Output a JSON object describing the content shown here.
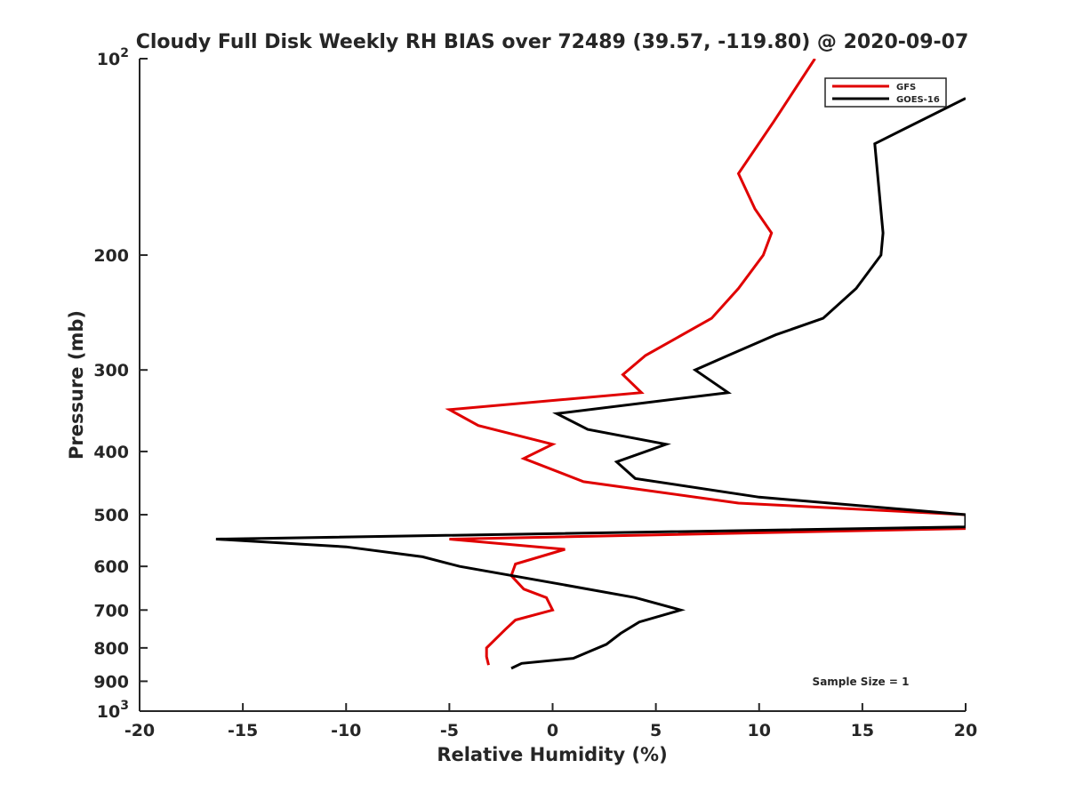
{
  "chart_data": {
    "type": "line",
    "title": "Cloudy Full Disk Weekly RH BIAS over 72489 (39.57, -119.80) @ 2020-09-07",
    "xlabel": "Relative Humidity (%)",
    "ylabel": "Pressure (mb)",
    "xlim": [
      -20,
      20
    ],
    "ylim": [
      100,
      1000
    ],
    "y_scale": "log",
    "y_reversed": true,
    "grid": false,
    "legend_position": "top-right",
    "x_ticks": [
      -20,
      -15,
      -10,
      -5,
      0,
      5,
      10,
      15,
      20
    ],
    "x_tick_labels": [
      "-20",
      "-15",
      "-10",
      "-5",
      "0",
      "5",
      "10",
      "15",
      "20"
    ],
    "y_ticks": [
      100,
      200,
      300,
      400,
      500,
      600,
      700,
      800,
      900,
      1000
    ],
    "y_tick_labels": [
      {
        "base": "10",
        "exp": "2"
      },
      {
        "base": "200",
        "exp": ""
      },
      {
        "base": "300",
        "exp": ""
      },
      {
        "base": "400",
        "exp": ""
      },
      {
        "base": "500",
        "exp": ""
      },
      {
        "base": "600",
        "exp": ""
      },
      {
        "base": "700",
        "exp": ""
      },
      {
        "base": "800",
        "exp": ""
      },
      {
        "base": "900",
        "exp": ""
      },
      {
        "base": "10",
        "exp": "3"
      }
    ],
    "annotation": "Sample Size = 1",
    "series": [
      {
        "name": "GFS",
        "color": "#e00000",
        "points": [
          [
            12.7,
            100
          ],
          [
            10.7,
            125
          ],
          [
            9.0,
            150
          ],
          [
            9.8,
            170
          ],
          [
            10.6,
            185
          ],
          [
            10.2,
            200
          ],
          [
            9.0,
            225
          ],
          [
            7.7,
            250
          ],
          [
            4.5,
            285
          ],
          [
            3.4,
            305
          ],
          [
            4.3,
            325
          ],
          [
            -5.0,
            345
          ],
          [
            -3.6,
            365
          ],
          [
            0.0,
            390
          ],
          [
            -1.4,
            410
          ],
          [
            1.5,
            445
          ],
          [
            9.0,
            480
          ],
          [
            20.0,
            500
          ],
          [
            20.0,
            525
          ],
          [
            -5.0,
            545
          ],
          [
            0.6,
            565
          ],
          [
            -1.8,
            595
          ],
          [
            -2.0,
            620
          ],
          [
            -1.4,
            650
          ],
          [
            -0.3,
            670
          ],
          [
            0.0,
            700
          ],
          [
            -1.8,
            725
          ],
          [
            -2.3,
            750
          ],
          [
            -3.2,
            800
          ],
          [
            -3.2,
            825
          ],
          [
            -3.1,
            850
          ]
        ]
      },
      {
        "name": "GOES-16",
        "color": "#000000",
        "points": [
          [
            20.0,
            115
          ],
          [
            15.6,
            135
          ],
          [
            16.0,
            185
          ],
          [
            15.9,
            200
          ],
          [
            14.7,
            225
          ],
          [
            13.1,
            250
          ],
          [
            10.8,
            265
          ],
          [
            8.5,
            285
          ],
          [
            6.9,
            300
          ],
          [
            8.5,
            325
          ],
          [
            0.2,
            350
          ],
          [
            1.7,
            370
          ],
          [
            5.5,
            390
          ],
          [
            3.1,
            415
          ],
          [
            4.0,
            440
          ],
          [
            10.0,
            470
          ],
          [
            20.0,
            500
          ],
          [
            20.0,
            522
          ],
          [
            -16.3,
            545
          ],
          [
            -10.0,
            560
          ],
          [
            -6.3,
            580
          ],
          [
            -4.5,
            600
          ],
          [
            0.5,
            640
          ],
          [
            4.0,
            670
          ],
          [
            6.2,
            700
          ],
          [
            4.2,
            730
          ],
          [
            3.3,
            760
          ],
          [
            2.6,
            790
          ],
          [
            1.8,
            810
          ],
          [
            1.0,
            830
          ],
          [
            -1.5,
            845
          ],
          [
            -2.0,
            860
          ]
        ]
      }
    ]
  }
}
